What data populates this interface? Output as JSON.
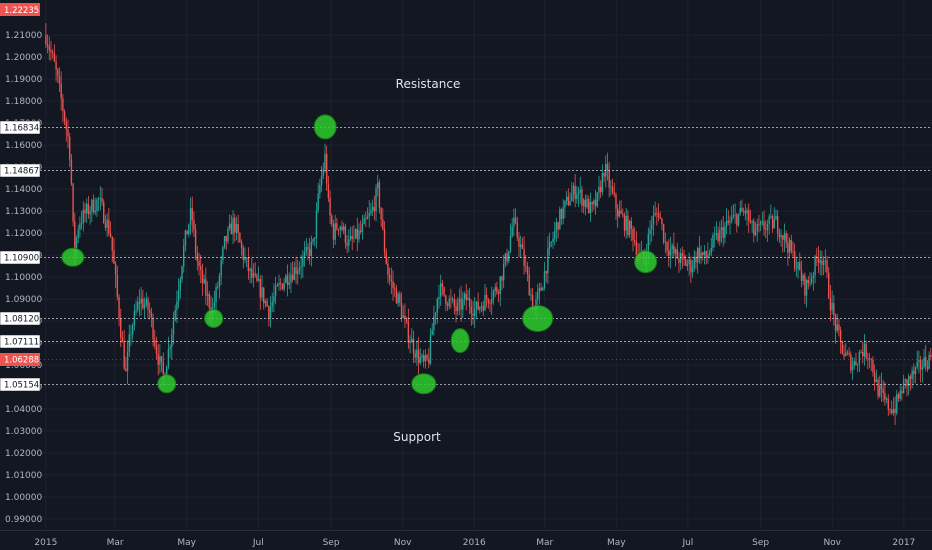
{
  "chart_data": {
    "type": "candlestick",
    "symbol": "EURUSD",
    "timeframe": "daily",
    "current_price": "1.06288",
    "current_price_value": 1.06288,
    "top_badge": "1.22235",
    "y_range": [
      0.985,
      1.226
    ],
    "y_ticks": [
      "1.21000",
      "1.20000",
      "1.19000",
      "1.18000",
      "1.17000",
      "1.16000",
      "1.15000",
      "1.14000",
      "1.13000",
      "1.12000",
      "1.11000",
      "1.10000",
      "1.09000",
      "1.08000",
      "1.07000",
      "1.06000",
      "1.05000",
      "1.04000",
      "1.03000",
      "1.02000",
      "1.01000",
      "1.00000",
      "0.99000"
    ],
    "y_tick_values": [
      1.21,
      1.2,
      1.19,
      1.18,
      1.17,
      1.16,
      1.15,
      1.14,
      1.13,
      1.12,
      1.11,
      1.1,
      1.09,
      1.08,
      1.07,
      1.06,
      1.05,
      1.04,
      1.03,
      1.02,
      1.01,
      1.0,
      0.99
    ],
    "x_ticks": [
      "2015",
      "Mar",
      "May",
      "Jul",
      "Sep",
      "Nov",
      "2016",
      "Mar",
      "May",
      "Jul",
      "Sep",
      "Nov",
      "2017"
    ],
    "x_tick_days": [
      0,
      59,
      120,
      181,
      243,
      304,
      365,
      425,
      486,
      547,
      609,
      670,
      731
    ],
    "x_range_days": [
      -5,
      755
    ],
    "levels": [
      {
        "label": "1.16834",
        "value": 1.16834
      },
      {
        "label": "1.14867",
        "value": 1.14867
      },
      {
        "label": "1.10900",
        "value": 1.109
      },
      {
        "label": "1.08120",
        "value": 1.0812
      },
      {
        "label": "1.07111",
        "value": 1.07111
      },
      {
        "label": "1.05154",
        "value": 1.05154
      }
    ],
    "annotations": {
      "resistance": "Resistance",
      "support": "Support"
    },
    "markers": [
      {
        "day": 23,
        "price": 1.109,
        "rx": 11,
        "ry": 9
      },
      {
        "day": 103,
        "price": 1.0515,
        "rx": 9,
        "ry": 9
      },
      {
        "day": 143,
        "price": 1.0812,
        "rx": 9,
        "ry": 9
      },
      {
        "day": 238,
        "price": 1.1683,
        "rx": 11,
        "ry": 12
      },
      {
        "day": 322,
        "price": 1.0515,
        "rx": 12,
        "ry": 10
      },
      {
        "day": 353,
        "price": 1.0711,
        "rx": 9,
        "ry": 12
      },
      {
        "day": 419,
        "price": 1.0812,
        "rx": 15,
        "ry": 13
      },
      {
        "day": 511,
        "price": 1.107,
        "rx": 11,
        "ry": 11
      }
    ],
    "price_path": [
      [
        0,
        1.21
      ],
      [
        8,
        1.195
      ],
      [
        15,
        1.175
      ],
      [
        20,
        1.16
      ],
      [
        22,
        1.14
      ],
      [
        24,
        1.11
      ],
      [
        28,
        1.125
      ],
      [
        35,
        1.13
      ],
      [
        45,
        1.135
      ],
      [
        55,
        1.12
      ],
      [
        60,
        1.095
      ],
      [
        65,
        1.07
      ],
      [
        68,
        1.055
      ],
      [
        72,
        1.075
      ],
      [
        80,
        1.09
      ],
      [
        88,
        1.085
      ],
      [
        95,
        1.065
      ],
      [
        100,
        1.055
      ],
      [
        104,
        1.065
      ],
      [
        110,
        1.085
      ],
      [
        118,
        1.115
      ],
      [
        124,
        1.13
      ],
      [
        128,
        1.11
      ],
      [
        132,
        1.1
      ],
      [
        138,
        1.09
      ],
      [
        142,
        1.085
      ],
      [
        148,
        1.1
      ],
      [
        152,
        1.115
      ],
      [
        160,
        1.125
      ],
      [
        168,
        1.11
      ],
      [
        175,
        1.1
      ],
      [
        182,
        1.095
      ],
      [
        190,
        1.085
      ],
      [
        198,
        1.095
      ],
      [
        205,
        1.1
      ],
      [
        215,
        1.105
      ],
      [
        222,
        1.11
      ],
      [
        228,
        1.115
      ],
      [
        233,
        1.14
      ],
      [
        238,
        1.155
      ],
      [
        241,
        1.13
      ],
      [
        245,
        1.12
      ],
      [
        250,
        1.125
      ],
      [
        258,
        1.115
      ],
      [
        268,
        1.12
      ],
      [
        278,
        1.13
      ],
      [
        283,
        1.14
      ],
      [
        288,
        1.115
      ],
      [
        292,
        1.1
      ],
      [
        300,
        1.09
      ],
      [
        308,
        1.075
      ],
      [
        316,
        1.065
      ],
      [
        322,
        1.06
      ],
      [
        326,
        1.062
      ],
      [
        330,
        1.08
      ],
      [
        335,
        1.095
      ],
      [
        342,
        1.09
      ],
      [
        350,
        1.085
      ],
      [
        358,
        1.09
      ],
      [
        366,
        1.085
      ],
      [
        375,
        1.09
      ],
      [
        385,
        1.095
      ],
      [
        393,
        1.11
      ],
      [
        398,
        1.125
      ],
      [
        404,
        1.115
      ],
      [
        410,
        1.1
      ],
      [
        416,
        1.085
      ],
      [
        422,
        1.095
      ],
      [
        428,
        1.11
      ],
      [
        436,
        1.125
      ],
      [
        445,
        1.135
      ],
      [
        452,
        1.14
      ],
      [
        458,
        1.135
      ],
      [
        465,
        1.13
      ],
      [
        470,
        1.135
      ],
      [
        476,
        1.15
      ],
      [
        481,
        1.14
      ],
      [
        487,
        1.13
      ],
      [
        493,
        1.125
      ],
      [
        500,
        1.12
      ],
      [
        505,
        1.11
      ],
      [
        510,
        1.108
      ],
      [
        516,
        1.125
      ],
      [
        522,
        1.13
      ],
      [
        528,
        1.115
      ],
      [
        536,
        1.11
      ],
      [
        543,
        1.107
      ],
      [
        550,
        1.105
      ],
      [
        556,
        1.112
      ],
      [
        562,
        1.108
      ],
      [
        568,
        1.115
      ],
      [
        575,
        1.12
      ],
      [
        583,
        1.125
      ],
      [
        590,
        1.128
      ],
      [
        596,
        1.13
      ],
      [
        603,
        1.12
      ],
      [
        612,
        1.123
      ],
      [
        622,
        1.125
      ],
      [
        632,
        1.115
      ],
      [
        640,
        1.105
      ],
      [
        647,
        1.095
      ],
      [
        652,
        1.1
      ],
      [
        658,
        1.11
      ],
      [
        663,
        1.108
      ],
      [
        668,
        1.09
      ],
      [
        674,
        1.075
      ],
      [
        680,
        1.065
      ],
      [
        688,
        1.06
      ],
      [
        695,
        1.067
      ],
      [
        702,
        1.065
      ],
      [
        708,
        1.05
      ],
      [
        716,
        1.042
      ],
      [
        723,
        1.04
      ],
      [
        730,
        1.05
      ],
      [
        738,
        1.055
      ],
      [
        746,
        1.06
      ],
      [
        755,
        1.064
      ]
    ]
  }
}
